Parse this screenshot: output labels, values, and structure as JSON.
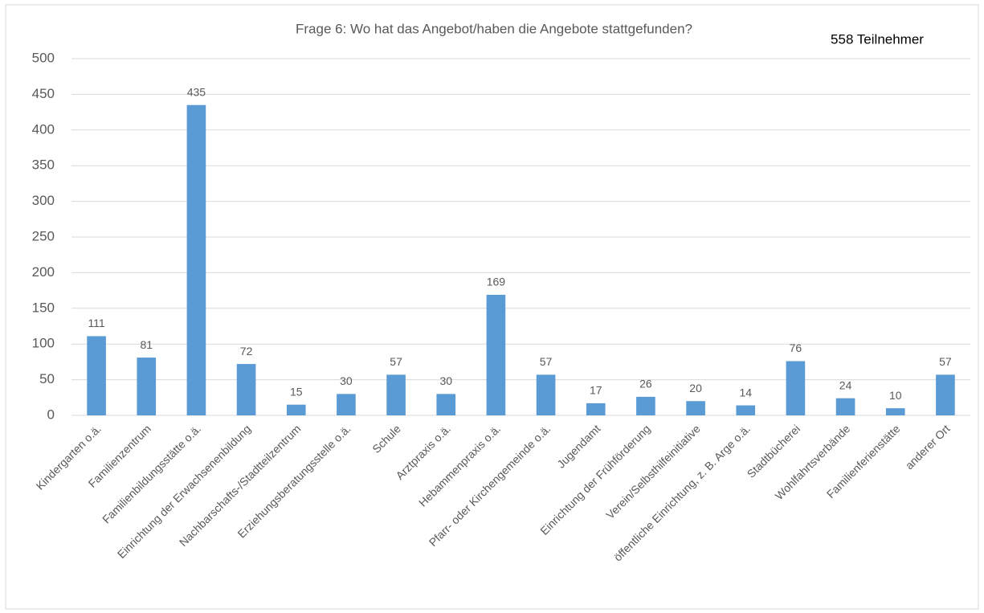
{
  "chart_data": {
    "type": "bar",
    "title": "Frage 6: Wo hat das Angebot/haben die Angebote stattgefunden?",
    "annotation": "558 Teilnehmer",
    "categories": [
      "Kindergarten o.ä.",
      "Familienzentrum",
      "Familienbildungsstätte o.ä.",
      "Einrichtung der Erwachsenenbildung",
      "Nachbarschafts-/Stadtteilzentrum",
      "Erziehungsberatungsstelle o.ä.",
      "Schule",
      "Arztpraxis o.ä.",
      "Hebammenpraxis o.ä.",
      "Pfarr- oder Kirchengemeinde o.ä.",
      "Jugendamt",
      "Einrichtung der Frühförderung",
      "Verein/Selbsthilfeinitiative",
      "öffentliche Einrichtung, z. B. Arge o.ä.",
      "Stadtbücherei",
      "Wohlfahrtsverbände",
      "Familienferienstätte",
      "anderer Ort"
    ],
    "values": [
      111,
      81,
      435,
      72,
      15,
      30,
      57,
      30,
      169,
      57,
      17,
      26,
      20,
      14,
      76,
      24,
      10,
      57
    ],
    "color": "#5b9bd5",
    "ylim": [
      0,
      500
    ],
    "yticks": [
      0,
      50,
      100,
      150,
      200,
      250,
      300,
      350,
      400,
      450,
      500
    ],
    "grid": true
  }
}
